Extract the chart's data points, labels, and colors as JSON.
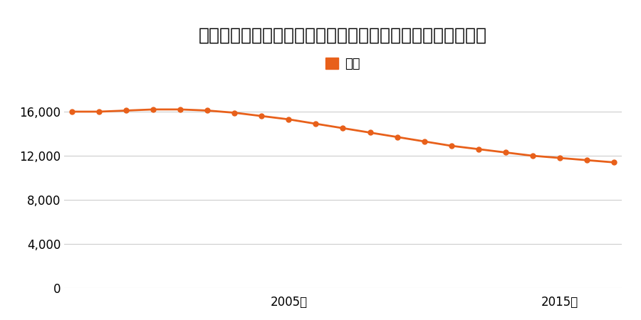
{
  "title": "山形県最上郡真室川町大字新町字天神２４０番２の地価推移",
  "legend_label": "価格",
  "line_color": "#e8601a",
  "marker_color": "#e8601a",
  "background_color": "#ffffff",
  "years": [
    1997,
    1998,
    1999,
    2000,
    2001,
    2002,
    2003,
    2004,
    2005,
    2006,
    2007,
    2008,
    2009,
    2010,
    2011,
    2012,
    2013,
    2014,
    2015,
    2016,
    2017
  ],
  "values": [
    16000,
    16000,
    16100,
    16200,
    16200,
    16100,
    15900,
    15600,
    15300,
    14900,
    14500,
    14100,
    13700,
    13300,
    12900,
    12600,
    12300,
    12000,
    11800,
    11600,
    11400
  ],
  "ylim": [
    0,
    18000
  ],
  "yticks": [
    0,
    4000,
    8000,
    12000,
    16000
  ],
  "xtick_labels": [
    "2005年",
    "2015年"
  ],
  "xtick_positions": [
    2005,
    2015
  ],
  "grid_color": "#cccccc",
  "title_fontsize": 18,
  "legend_fontsize": 13,
  "tick_fontsize": 12
}
